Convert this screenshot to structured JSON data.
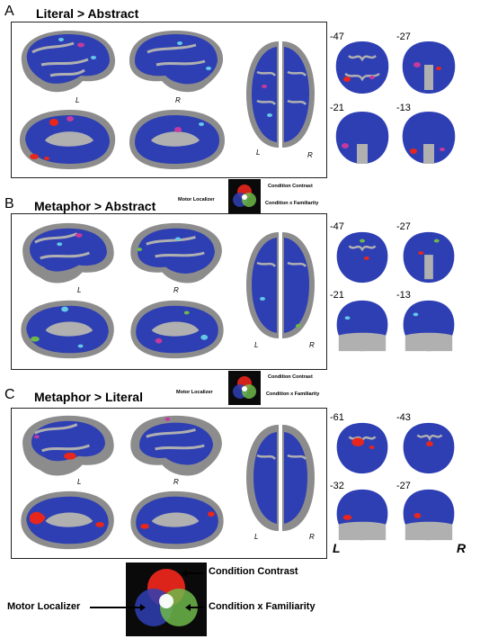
{
  "panels": [
    {
      "letter": "A",
      "title": "Literal > Abstract",
      "hemi_left": "L",
      "hemi_right": "R",
      "dorsal_left": "L",
      "dorsal_right": "R",
      "slices": [
        "-47",
        "-27",
        "-21",
        "-13"
      ]
    },
    {
      "letter": "B",
      "title": "Metaphor > Abstract",
      "hemi_left": "L",
      "hemi_right": "R",
      "dorsal_left": "L",
      "dorsal_right": "R",
      "slices": [
        "-47",
        "-27",
        "-21",
        "-13"
      ]
    },
    {
      "letter": "C",
      "title": "Metaphor > Literal",
      "hemi_left": "L",
      "hemi_right": "R",
      "dorsal_left": "L",
      "dorsal_right": "R",
      "slices": [
        "-61",
        "-43",
        "-32",
        "-27"
      ],
      "slice_left": "L",
      "slice_right": "R"
    }
  ],
  "legend": {
    "condition_contrast": "Condition Contrast",
    "motor_localizer": "Motor Localizer",
    "condition_x_familiarity": "Condition x Familiarity"
  },
  "colors": {
    "cortex": "#8c8c8c",
    "sulci": "#b0b0b0",
    "overlay_blue": "#2e3fb3",
    "red": "#e8261c",
    "magenta": "#c43a9e",
    "cyan": "#63c8e8",
    "green": "#6fb84a"
  }
}
